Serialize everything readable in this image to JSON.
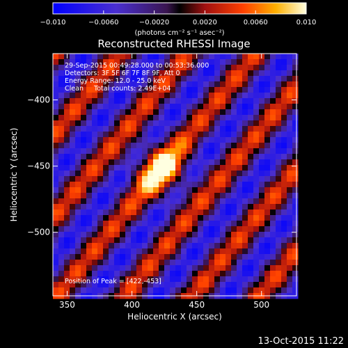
{
  "chart_data": {
    "type": "heatmap",
    "title": "Reconstructed RHESSI Image",
    "xlabel": "Heliocentric X (arcsec)",
    "ylabel": "Heliocentric Y (arcsec)",
    "xlim": [
      339,
      527
    ],
    "ylim": [
      -548,
      -365
    ],
    "xticks": [
      350,
      400,
      450,
      500
    ],
    "yticks": [
      -400,
      -450,
      -500
    ],
    "colorbar": {
      "range": [
        -0.01,
        0.01
      ],
      "ticks": [
        "−0.010",
        "−0.0060",
        "−0.0020",
        "0.0020",
        "0.0060",
        "0.010"
      ],
      "tick_values": [
        -0.01,
        -0.006,
        -0.002,
        0.002,
        0.006,
        0.01
      ],
      "unit": "(photons cm⁻² s⁻¹ asec⁻²)"
    },
    "annotations": [
      "29-Sep-2015 00:49:28.000 to 00:53:36.000",
      "Detectors: 3F 5F 6F 7F 8F 9F, Att 0",
      "Energy Range: 12.0 - 25.0 keV",
      "Clean     Total counts: 2.49E+04"
    ],
    "peak": {
      "label": "Position of Peak = [422,-453]",
      "x": 422,
      "y": -453
    },
    "stripe_angle_deg": -40,
    "stripe_period_arcsec": 40
  },
  "timestamp": "13-Oct-2015 11:22"
}
